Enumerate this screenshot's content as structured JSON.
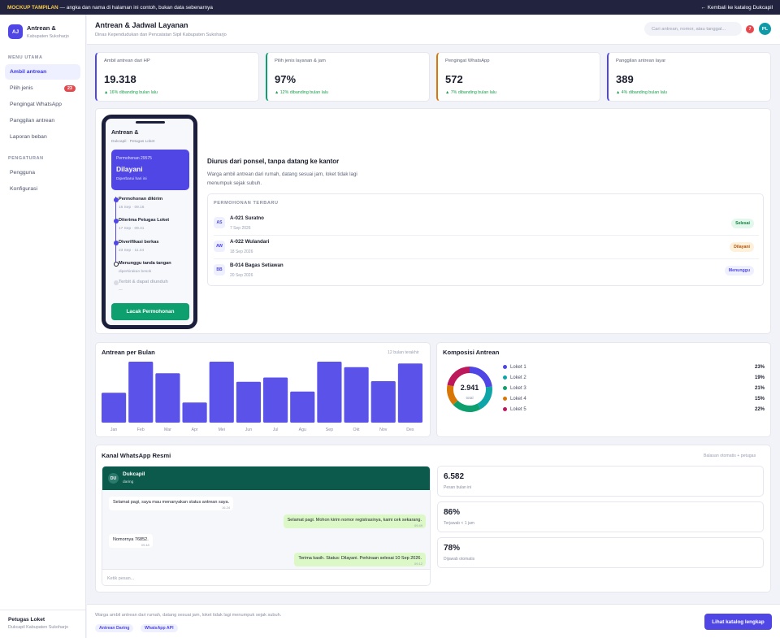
{
  "banner": {
    "tag": "MOCKUP TAMPILAN",
    "text": "— angka dan nama di halaman ini contoh, bukan data sebenarnya",
    "back": "← Kembali ke katalog Dukcapil"
  },
  "brand": {
    "initials": "AJ",
    "name": "Antrean &",
    "sub": "Kabupaten Sukoharjo"
  },
  "sidebar": {
    "menu_label": "MENU UTAMA",
    "items": [
      {
        "label": "Ambil antrean"
      },
      {
        "label": "Pilih jenis",
        "badge": "23"
      },
      {
        "label": "Pengingat WhatsApp"
      },
      {
        "label": "Panggilan antrean"
      },
      {
        "label": "Laporan beban"
      }
    ],
    "settings_label": "PENGATURAN",
    "settings": [
      {
        "label": "Pengguna"
      },
      {
        "label": "Konfigurasi"
      }
    ],
    "user_name": "Petugas Loket",
    "user_role": "Dukcapil Kabupaten Sukoharjo"
  },
  "header": {
    "title": "Antrean & Jadwal Layanan",
    "subtitle": "Dinas Kependudukan dan Pencatatan Sipil Kabupaten Sukoharjo",
    "search_placeholder": "Cari antrean, nomor, atau tanggal...",
    "notif_count": "7",
    "avatar": "PL"
  },
  "kpis": [
    {
      "label": "Ambil antrean dari HP",
      "value": "19.318",
      "delta": "▲ 16% dibanding bulan lalu",
      "color": "#4f46e5"
    },
    {
      "label": "Pilih jenis layanan & jam",
      "value": "97%",
      "delta": "▲ 12% dibanding bulan lalu",
      "color": "#0e9f6e"
    },
    {
      "label": "Pengingat WhatsApp",
      "value": "572",
      "delta": "▲ 7% dibanding bulan lalu",
      "color": "#d97706"
    },
    {
      "label": "Panggilan antrean layar",
      "value": "389",
      "delta": "▲ 4% dibanding bulan lalu",
      "color": "#4f46e5"
    }
  ],
  "phone": {
    "title": "Antrean &",
    "sub": "Dukcapil · Petugas Loket",
    "card_id": "Permohonan 29575",
    "card_status": "Dilayani",
    "card_note": "Diperbarui hari ini",
    "steps": [
      {
        "t": "Permohonan dikirim",
        "d": "16 Sep · 09.16"
      },
      {
        "t": "Diterima Petugas Loket",
        "d": "17 Sep · 09.41"
      },
      {
        "t": "Diverifikasi berkas",
        "d": "23 Sep · 11.44"
      },
      {
        "t": "Menunggu tanda tangan",
        "d": "diperkirakan besok"
      },
      {
        "t": "Terbit & dapat diunduh",
        "d": "—"
      }
    ],
    "button": "Lacak Permohonan"
  },
  "hero": {
    "title": "Diurus dari ponsel, tanpa datang ke kantor",
    "desc": "Warga ambil antrean dari rumah, datang sesuai jam, loket tidak lagi menumpuk sejak subuh."
  },
  "recent": {
    "header": "PERMOHONAN TERBARU",
    "rows": [
      {
        "ini": "AS",
        "name": "A-021 Suratno",
        "date": "7 Sep 2026",
        "status": "Selesai"
      },
      {
        "ini": "AW",
        "name": "A-022 Wulandari",
        "date": "18 Sep 2026",
        "status": "Dilayani"
      },
      {
        "ini": "BB",
        "name": "B-014 Bagas Setiawan",
        "date": "20 Sep 2026",
        "status": "Menunggu"
      }
    ]
  },
  "chart_data": [
    {
      "type": "bar",
      "title": "Antrean per Bulan",
      "subtitle": "12 bulan terakhir",
      "categories": [
        "Jan",
        "Feb",
        "Mar",
        "Apr",
        "Mei",
        "Jun",
        "Jul",
        "Agu",
        "Sep",
        "Okt",
        "Nov",
        "Des"
      ],
      "values": [
        49,
        100,
        81,
        33,
        100,
        67,
        74,
        51,
        100,
        91,
        68,
        97
      ],
      "ylim": [
        0,
        100
      ],
      "color": "#5b52ea"
    },
    {
      "type": "pie",
      "title": "Komposisi Antrean",
      "total": "2.941",
      "total_label": "total",
      "labels": [
        "Loket 1",
        "Loket 2",
        "Loket 3",
        "Loket 4",
        "Loket 5"
      ],
      "values": [
        23,
        19,
        21,
        15,
        22
      ],
      "value_labels": [
        "23%",
        "19%",
        "21%",
        "15%",
        "22%"
      ],
      "colors": [
        "#4f46e5",
        "#0ea5a8",
        "#0e9f6e",
        "#d97706",
        "#be185d"
      ]
    }
  ],
  "wa": {
    "title": "Kanal WhatsApp Resmi",
    "subtitle": "Balasan otomatis + petugas",
    "contact_ini": "DU",
    "contact": "Dukcapil",
    "status": "daring",
    "messages": [
      {
        "text": "Selamat pagi, saya mau menanyakan status antrean saya.",
        "time": "16.24",
        "out": false
      },
      {
        "text": "Selamat pagi. Mohon kirim nomor registrasinya, kami cek sekarang.",
        "time": "09.49",
        "out": true
      },
      {
        "text": "Nomornya 76852.",
        "time": "09.48",
        "out": false
      },
      {
        "text": "Terima kasih. Status: Dilayani. Perkiraan selesai 10 Sep 2026.",
        "time": "09.12",
        "out": true
      }
    ],
    "input_placeholder": "Ketik pesan...",
    "stats": [
      {
        "value": "6.582",
        "label": "Pesan bulan ini"
      },
      {
        "value": "86%",
        "label": "Terjawab < 1 jam"
      },
      {
        "value": "78%",
        "label": "Dijawab otomatis"
      }
    ]
  },
  "footer": {
    "desc": "Warga ambil antrean dari rumah, datang sesuai jam, loket tidak lagi menumpuk sejak subuh.",
    "tags": [
      "Antrean Daring",
      "WhatsApp API"
    ],
    "cta": "Lihat katalog lengkap"
  }
}
